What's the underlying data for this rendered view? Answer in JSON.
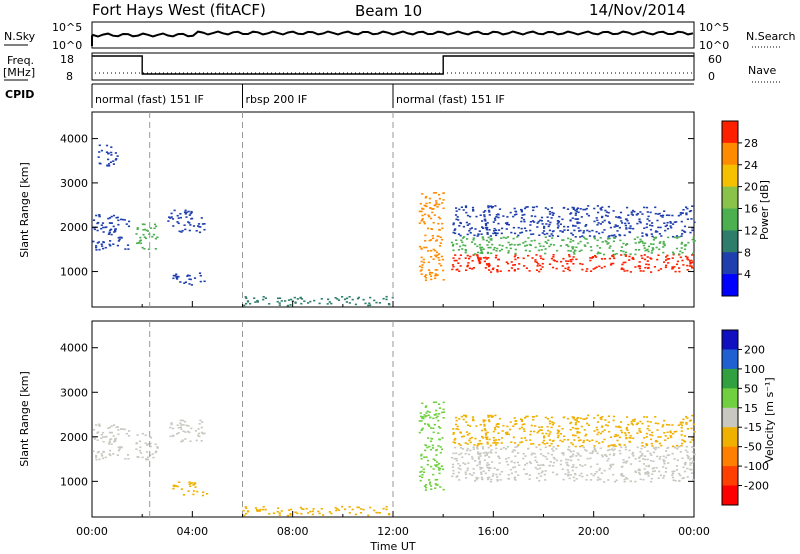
{
  "header": {
    "station": "Fort Hays West (fitACF)",
    "beam": "Beam 10",
    "date": "14/Nov/2014"
  },
  "top_panels": {
    "nsky_label": "N.Sky",
    "nsky_ticks": [
      "10^5",
      "10^0"
    ],
    "nsearch_label": "N.Search",
    "nsearch_ticks": [
      "10^5",
      "10^0"
    ],
    "freq_label": "Freq.",
    "freq_unit": "[MHz]",
    "freq_ticks": [
      "18",
      "8"
    ],
    "nave_label": "Nave",
    "nave_ticks": [
      "60",
      "0"
    ],
    "cpid_label": "CPID",
    "cpid_segments": [
      {
        "label": "normal (fast) 151 IF",
        "start_hour": 0,
        "end_hour": 6
      },
      {
        "label": "rbsp 200 IF",
        "start_hour": 6,
        "end_hour": 12
      },
      {
        "label": "normal (fast) 151 IF",
        "start_hour": 12,
        "end_hour": 24
      }
    ],
    "freq_series": [
      {
        "hour": 0,
        "value": 18
      },
      {
        "hour": 2,
        "value": 18
      },
      {
        "hour": 2,
        "value": 10.5
      },
      {
        "hour": 14,
        "value": 10.5
      },
      {
        "hour": 14,
        "value": 18
      },
      {
        "hour": 24,
        "value": 18
      }
    ]
  },
  "x_axis": {
    "label": "Time UT",
    "ticks": [
      "00:00",
      "04:00",
      "08:00",
      "12:00",
      "16:00",
      "20:00",
      "00:00"
    ]
  },
  "panels": [
    {
      "id": "power",
      "ylabel": "Slant Range [km]",
      "yticks": [
        "1000",
        "2000",
        "3000",
        "4000"
      ],
      "colorbar_label": "Power [dB]",
      "colorbar_ticks": [
        "4",
        "8",
        "12",
        "16",
        "20",
        "24",
        "28"
      ],
      "colorbar_colors": [
        "#0000ff",
        "#1f3fae",
        "#2e7d6b",
        "#4caf50",
        "#8bc34a",
        "#f5c000",
        "#ff8c00",
        "#ff2000"
      ]
    },
    {
      "id": "velocity",
      "ylabel": "Slant Range [km]",
      "yticks": [
        "1000",
        "2000",
        "3000",
        "4000"
      ],
      "colorbar_label": "Velocity [m s⁻¹]",
      "colorbar_ticks": [
        "200",
        "100",
        "50",
        "15",
        "-15",
        "-50",
        "-100",
        "-200"
      ],
      "colorbar_colors": [
        "#1010c0",
        "#2060d0",
        "#30a040",
        "#70d040",
        "#c8c8c0",
        "#f0b000",
        "#ff8000",
        "#ff4000",
        "#ff0000"
      ]
    }
  ],
  "chart_data": {
    "type": "heatmap",
    "x_range_hours": [
      0,
      24
    ],
    "y_range_km": [
      200,
      4600
    ],
    "gridlines_at_hours": [
      2.3,
      6,
      12
    ],
    "power_features": [
      {
        "t0": 0.0,
        "t1": 1.5,
        "r0": 1500,
        "r1": 2300,
        "color": "#1f3fae"
      },
      {
        "t0": 0.2,
        "t1": 1.0,
        "r0": 3400,
        "r1": 3900,
        "color": "#1f3fae"
      },
      {
        "t0": 1.7,
        "t1": 2.6,
        "r0": 1500,
        "r1": 2100,
        "color": "#4caf50"
      },
      {
        "t0": 3.0,
        "t1": 4.5,
        "r0": 1900,
        "r1": 2400,
        "color": "#1f3fae"
      },
      {
        "t0": 3.2,
        "t1": 4.6,
        "r0": 700,
        "r1": 1000,
        "color": "#1f3fae"
      },
      {
        "t0": 6.0,
        "t1": 12.0,
        "r0": 250,
        "r1": 450,
        "color": "#2e7d6b"
      },
      {
        "t0": 13.0,
        "t1": 14.0,
        "r0": 800,
        "r1": 2800,
        "color": "#ff8c00"
      },
      {
        "t0": 14.3,
        "t1": 24.0,
        "r0": 1000,
        "r1": 1400,
        "color": "#ff2000"
      },
      {
        "t0": 14.3,
        "t1": 24.0,
        "r0": 1400,
        "r1": 1800,
        "color": "#4caf50"
      },
      {
        "t0": 14.3,
        "t1": 24.0,
        "r0": 1800,
        "r1": 2500,
        "color": "#1f3fae"
      }
    ],
    "velocity_features": [
      {
        "t0": 0.0,
        "t1": 1.5,
        "r0": 1500,
        "r1": 2300,
        "color": "#c8c8c0"
      },
      {
        "t0": 1.7,
        "t1": 2.6,
        "r0": 1500,
        "r1": 2100,
        "color": "#c8c8c0"
      },
      {
        "t0": 3.0,
        "t1": 4.5,
        "r0": 1900,
        "r1": 2400,
        "color": "#c8c8c0"
      },
      {
        "t0": 3.2,
        "t1": 4.6,
        "r0": 700,
        "r1": 1000,
        "color": "#f0b000"
      },
      {
        "t0": 6.0,
        "t1": 12.0,
        "r0": 250,
        "r1": 450,
        "color": "#f0b000"
      },
      {
        "t0": 13.0,
        "t1": 14.0,
        "r0": 800,
        "r1": 2800,
        "color": "#70d040"
      },
      {
        "t0": 14.3,
        "t1": 24.0,
        "r0": 1000,
        "r1": 1800,
        "color": "#c8c8c0"
      },
      {
        "t0": 14.3,
        "t1": 24.0,
        "r0": 1800,
        "r1": 2500,
        "color": "#f0b000"
      }
    ]
  }
}
